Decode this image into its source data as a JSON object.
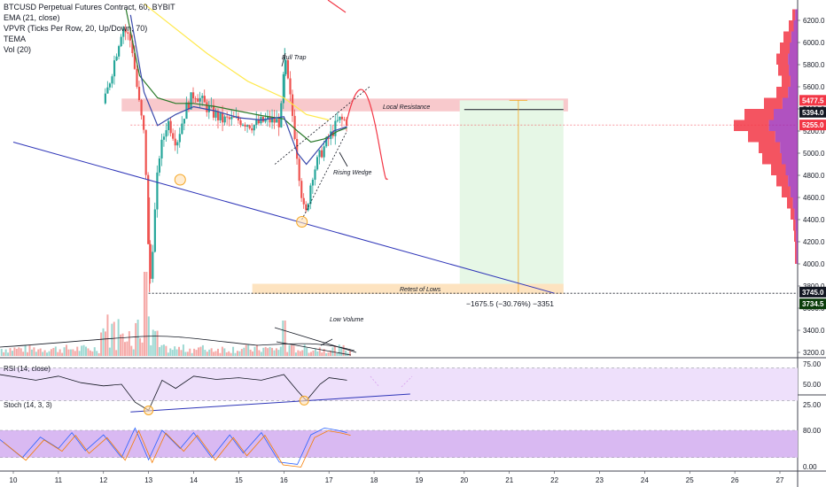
{
  "header": {
    "symbol_line": "BTCUSD Perpetual Futures Contract, 60, BYBIT",
    "indicators": [
      "EMA (21, close)",
      "VPVR (Ticks Per Row, 20, Up/Down, 70)",
      "TEMA",
      "Vol (20)"
    ]
  },
  "annotations": {
    "bull_trap": "Bull Trap",
    "local_resistance": "Local Resistance",
    "rising_wedge": "Rising Wedge",
    "retest_of_lows": "Retest of Lows",
    "low_volume": "Low Volume",
    "measure": "−1675.5 (−30.76%) −3351"
  },
  "panes": {
    "rsi_label": "RSI (14, close)",
    "stoch_label": "Stoch (14, 3, 3)"
  },
  "price_tags": [
    {
      "value": "5477.5",
      "color": "#f23645",
      "text_color": "#ffffff"
    },
    {
      "value": "5394.0",
      "color": "#131722",
      "text_color": "#ffffff"
    },
    {
      "value": "5255.0",
      "color": "#f23645",
      "text_color": "#ffffff"
    },
    {
      "value": "3745.0",
      "color": "#131722",
      "text_color": "#ffffff"
    },
    {
      "value": "3734.5",
      "color": "#0b3d0b",
      "text_color": "#ffffff"
    }
  ],
  "colors": {
    "up": "#26a69a",
    "down": "#ef5350",
    "ema": "#2a7a2a",
    "tema": "#3949ab",
    "yellow": "#ffe94d",
    "trend": "#2e35b8",
    "resistance_zone": "#f8c9cc",
    "target_zone": "#e6f7e6",
    "retest_zone": "#fde3c0",
    "rsi_fill": "#eee0fb",
    "stoch_fill": "#d9b9f2"
  },
  "chart_data": {
    "type": "candlestick",
    "price_axis": {
      "ticks": [
        "6200.0",
        "6000.0",
        "5800.0",
        "5600.0",
        "5400.0",
        "5200.0",
        "5000.0",
        "4800.0",
        "4600.0",
        "4400.0",
        "4200.0",
        "4000.0",
        "3800.0",
        "3600.0",
        "3400.0",
        "3200.0"
      ],
      "range": [
        3100,
        6350
      ]
    },
    "rsi_axis": {
      "ticks": [
        "75.00",
        "50.00",
        "25.00"
      ],
      "band": [
        30,
        70
      ],
      "range": [
        10,
        80
      ]
    },
    "stoch_axis": {
      "ticks": [
        "80.00",
        "0.00"
      ],
      "band": [
        20,
        80
      ],
      "range": [
        -10,
        100
      ]
    },
    "x_axis": {
      "ticks": [
        "10",
        "11",
        "12",
        "13",
        "14",
        "15",
        "16",
        "17",
        "18",
        "19",
        "20",
        "21",
        "22",
        "23",
        "24",
        "25",
        "26",
        "27"
      ],
      "range": [
        9.7,
        27.8
      ]
    },
    "price_series": [
      [
        12.0,
        5450
      ],
      [
        12.2,
        5800
      ],
      [
        12.4,
        6150
      ],
      [
        12.6,
        6000
      ],
      [
        12.75,
        5500
      ],
      [
        12.9,
        5100
      ],
      [
        13.0,
        3745
      ],
      [
        13.2,
        4950
      ],
      [
        13.4,
        5300
      ],
      [
        13.6,
        5100
      ],
      [
        13.8,
        5400
      ],
      [
        14.0,
        5550
      ],
      [
        14.3,
        5400
      ],
      [
        14.6,
        5300
      ],
      [
        15.0,
        5300
      ],
      [
        15.3,
        5250
      ],
      [
        15.6,
        5300
      ],
      [
        15.9,
        5280
      ],
      [
        16.0,
        5850
      ],
      [
        16.2,
        5250
      ],
      [
        16.35,
        4700
      ],
      [
        16.45,
        4400
      ],
      [
        16.6,
        4800
      ],
      [
        16.8,
        5000
      ],
      [
        17.0,
        5150
      ],
      [
        17.2,
        5300
      ],
      [
        17.4,
        5290
      ]
    ],
    "ema": [
      [
        12.5,
        6300
      ],
      [
        12.8,
        5700
      ],
      [
        13.2,
        5500
      ],
      [
        13.6,
        5450
      ],
      [
        14.0,
        5450
      ],
      [
        14.5,
        5420
      ],
      [
        15.0,
        5380
      ],
      [
        15.5,
        5340
      ],
      [
        16.0,
        5310
      ],
      [
        16.3,
        5200
      ],
      [
        16.6,
        5100
      ],
      [
        16.9,
        5130
      ],
      [
        17.2,
        5200
      ],
      [
        17.4,
        5230
      ]
    ],
    "tema": [
      [
        12.6,
        6250
      ],
      [
        12.9,
        5550
      ],
      [
        13.2,
        5250
      ],
      [
        13.6,
        5350
      ],
      [
        14.0,
        5420
      ],
      [
        14.5,
        5380
      ],
      [
        15.0,
        5320
      ],
      [
        15.5,
        5300
      ],
      [
        16.0,
        5330
      ],
      [
        16.3,
        5000
      ],
      [
        16.5,
        4900
      ],
      [
        16.8,
        5050
      ],
      [
        17.1,
        5200
      ],
      [
        17.4,
        5240
      ]
    ],
    "yellow_line": [
      [
        12.9,
        6350
      ],
      [
        14.3,
        5900
      ],
      [
        15.2,
        5650
      ],
      [
        16.0,
        5500
      ],
      [
        16.5,
        5350
      ],
      [
        17.0,
        5300
      ]
    ],
    "forecast_curve": [
      [
        17.4,
        5300
      ],
      [
        17.7,
        5600
      ],
      [
        17.9,
        5500
      ],
      [
        18.1,
        5100
      ],
      [
        18.3,
        4760
      ]
    ],
    "trendline": [
      [
        10.0,
        5100
      ],
      [
        22.0,
        3734.5
      ]
    ],
    "wedge_upper": [
      [
        15.8,
        4900
      ],
      [
        17.9,
        5600
      ]
    ],
    "wedge_lower": [
      [
        16.4,
        4400
      ],
      [
        17.4,
        5200
      ]
    ],
    "local_resistance": {
      "x": [
        12.6,
        22.3
      ],
      "y": [
        5394,
        5477.5
      ]
    },
    "target_box": {
      "x": [
        19.9,
        22.2
      ],
      "y": [
        3745,
        5477.5
      ]
    },
    "retest_box": {
      "x": [
        15.3,
        22.2
      ],
      "y": [
        3745,
        3820
      ]
    },
    "retest_level": 3734.5,
    "circles": [
      [
        13.7,
        4760
      ],
      [
        16.4,
        4380
      ]
    ],
    "rsi_series": [
      [
        9.7,
        62
      ],
      [
        10.5,
        55
      ],
      [
        11.0,
        60
      ],
      [
        11.5,
        52
      ],
      [
        12.0,
        48
      ],
      [
        12.4,
        50
      ],
      [
        12.7,
        28
      ],
      [
        13.0,
        18
      ],
      [
        13.3,
        55
      ],
      [
        13.6,
        45
      ],
      [
        14.0,
        60
      ],
      [
        14.5,
        56
      ],
      [
        15.0,
        58
      ],
      [
        15.5,
        55
      ],
      [
        16.0,
        62
      ],
      [
        16.3,
        42
      ],
      [
        16.5,
        30
      ],
      [
        16.8,
        50
      ],
      [
        17.0,
        58
      ],
      [
        17.4,
        55
      ]
    ],
    "rsi_trend": [
      [
        12.6,
        16
      ],
      [
        18.8,
        38
      ]
    ],
    "stoch_series": [
      [
        9.7,
        60
      ],
      [
        10.2,
        20
      ],
      [
        10.6,
        65
      ],
      [
        11.0,
        40
      ],
      [
        11.3,
        75
      ],
      [
        11.6,
        35
      ],
      [
        12.0,
        70
      ],
      [
        12.4,
        20
      ],
      [
        12.7,
        85
      ],
      [
        13.0,
        15
      ],
      [
        13.3,
        80
      ],
      [
        13.7,
        40
      ],
      [
        14.0,
        75
      ],
      [
        14.4,
        20
      ],
      [
        14.8,
        70
      ],
      [
        15.1,
        30
      ],
      [
        15.5,
        75
      ],
      [
        15.9,
        10
      ],
      [
        16.3,
        5
      ],
      [
        16.6,
        70
      ],
      [
        16.9,
        85
      ],
      [
        17.2,
        80
      ],
      [
        17.4,
        75
      ]
    ]
  }
}
